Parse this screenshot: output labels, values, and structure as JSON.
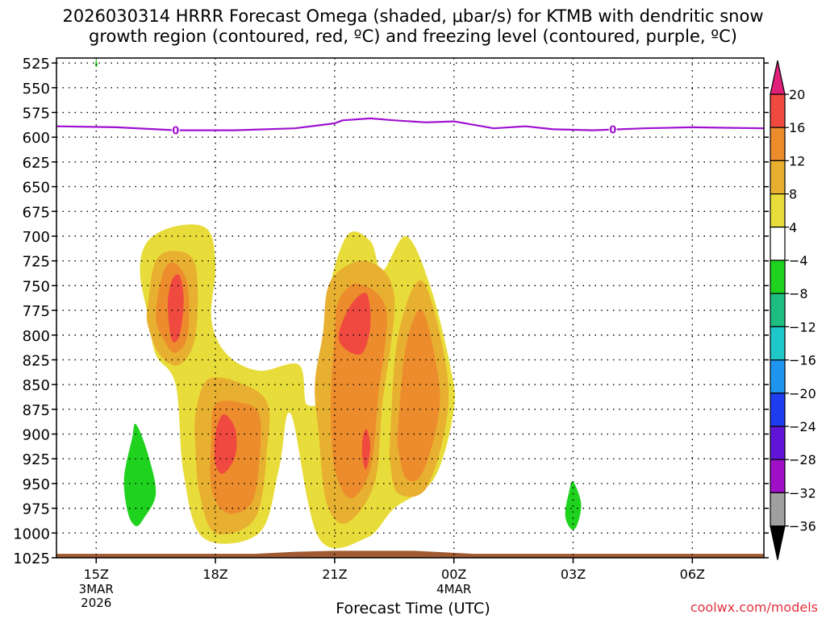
{
  "title_line1": "2026030314 HRRR Forecast Omega (shaded, μbar/s) for KTMB with dendritic snow",
  "title_line2": "growth region (contoured, red, ºC) and freezing level (contoured, purple, ºC)",
  "xlabel": "Forecast Time (UTC)",
  "credit": "coolwx.com/models",
  "colors": {
    "c4_8": "#e8dc3a",
    "c8_12": "#e8b030",
    "c12_16": "#ec8c2c",
    "c16_20": "#f04a40",
    "c20p": "#e0207a",
    "green": "#1ed21e",
    "freeze": "#a010d0",
    "ground": "#a05a32"
  },
  "chart_data": {
    "type": "heatmap",
    "title": "2026030314 HRRR Forecast Omega (shaded, μbar/s) for KTMB with dendritic snow growth region (contoured, red, ºC) and freezing level (contoured, purple, ºC)",
    "xlabel": "Forecast Time (UTC)",
    "ylabel": "",
    "x_ticks": [
      {
        "label": "15Z",
        "sub": [
          "3MAR",
          "2026"
        ]
      },
      {
        "label": "18Z",
        "sub": []
      },
      {
        "label": "21Z",
        "sub": []
      },
      {
        "label": "00Z",
        "sub": [
          "4MAR"
        ]
      },
      {
        "label": "03Z",
        "sub": []
      },
      {
        "label": "06Z",
        "sub": []
      }
    ],
    "x_hours": [
      0,
      3,
      6,
      9,
      12,
      15
    ],
    "x_range_hours": [
      -1.0,
      16.8
    ],
    "y_levels": [
      525,
      550,
      575,
      600,
      625,
      650,
      675,
      700,
      725,
      750,
      775,
      800,
      825,
      850,
      875,
      900,
      925,
      950,
      975,
      1000,
      1025
    ],
    "y_range_hpa": [
      520,
      1025
    ],
    "colorbar": {
      "labels": [
        "20",
        "16",
        "12",
        "8",
        "4",
        "−4",
        "−8",
        "−12",
        "−16",
        "−20",
        "−24",
        "−28",
        "−32",
        "−36"
      ],
      "colors": [
        "#f04a40",
        "#ec8c2c",
        "#e8b030",
        "#e8dc3a",
        "#ffffff",
        "#1ed21e",
        "#1ebe82",
        "#1ec8c8",
        "#1e96f0",
        "#1e3cf0",
        "#6014d8",
        "#a010c8",
        "#a0a0a0"
      ]
    },
    "freezing_level": {
      "label": "0",
      "points_hour_hpa": [
        [
          -1.0,
          589
        ],
        [
          0.5,
          590
        ],
        [
          2.0,
          593
        ],
        [
          3.5,
          593
        ],
        [
          5.0,
          591
        ],
        [
          6.0,
          586
        ],
        [
          6.2,
          583
        ],
        [
          6.9,
          581
        ],
        [
          7.5,
          583
        ],
        [
          8.3,
          585
        ],
        [
          9.0,
          584
        ],
        [
          10.0,
          591
        ],
        [
          10.8,
          589
        ],
        [
          11.5,
          592
        ],
        [
          12.5,
          593
        ],
        [
          13.8,
          591
        ],
        [
          15.0,
          590
        ],
        [
          16.8,
          591
        ]
      ],
      "label_hours": [
        2.0,
        13.0
      ]
    },
    "omega_regions": [
      {
        "level": "4-8",
        "points_hour_hpa": [
          [
            1.1,
            735
          ],
          [
            1.3,
            705
          ],
          [
            2.0,
            690
          ],
          [
            2.8,
            693
          ],
          [
            3.0,
            730
          ],
          [
            2.9,
            785
          ],
          [
            3.3,
            820
          ],
          [
            4.1,
            836
          ],
          [
            5.1,
            830
          ],
          [
            5.3,
            870
          ],
          [
            5.8,
            855
          ],
          [
            5.8,
            770
          ],
          [
            6.3,
            700
          ],
          [
            6.9,
            705
          ],
          [
            7.2,
            735
          ],
          [
            7.8,
            700
          ],
          [
            8.4,
            750
          ],
          [
            8.9,
            830
          ],
          [
            9.0,
            875
          ],
          [
            8.5,
            945
          ],
          [
            7.5,
            975
          ],
          [
            6.8,
            1005
          ],
          [
            5.6,
            1005
          ],
          [
            4.9,
            880
          ],
          [
            4.6,
            935
          ],
          [
            4.1,
            1000
          ],
          [
            2.7,
            1005
          ],
          [
            2.2,
            940
          ],
          [
            2.0,
            850
          ],
          [
            1.5,
            820
          ],
          [
            1.3,
            780
          ]
        ]
      },
      {
        "level": "8-12",
        "points_hour_hpa": [
          [
            1.3,
            770
          ],
          [
            1.5,
            725
          ],
          [
            2.0,
            715
          ],
          [
            2.5,
            730
          ],
          [
            2.5,
            800
          ],
          [
            2.1,
            830
          ],
          [
            1.6,
            820
          ],
          [
            1.3,
            790
          ]
        ]
      },
      {
        "level": "8-12",
        "points_hour_hpa": [
          [
            2.5,
            880
          ],
          [
            2.8,
            845
          ],
          [
            3.6,
            848
          ],
          [
            4.3,
            868
          ],
          [
            4.3,
            915
          ],
          [
            4.0,
            985
          ],
          [
            3.0,
            1000
          ],
          [
            2.6,
            960
          ],
          [
            2.5,
            915
          ]
        ]
      },
      {
        "level": "8-12",
        "points_hour_hpa": [
          [
            5.7,
            800
          ],
          [
            5.9,
            745
          ],
          [
            6.8,
            725
          ],
          [
            7.5,
            760
          ],
          [
            7.2,
            870
          ],
          [
            7.0,
            950
          ],
          [
            6.3,
            990
          ],
          [
            5.8,
            970
          ],
          [
            5.6,
            900
          ],
          [
            5.5,
            850
          ]
        ]
      },
      {
        "level": "8-12",
        "points_hour_hpa": [
          [
            7.4,
            900
          ],
          [
            7.6,
            800
          ],
          [
            8.2,
            745
          ],
          [
            8.8,
            830
          ],
          [
            8.8,
            890
          ],
          [
            8.3,
            955
          ],
          [
            7.6,
            960
          ],
          [
            7.4,
            930
          ]
        ]
      },
      {
        "level": "12-16",
        "points_hour_hpa": [
          [
            1.5,
            780
          ],
          [
            1.7,
            735
          ],
          [
            2.0,
            728
          ],
          [
            2.3,
            750
          ],
          [
            2.3,
            800
          ],
          [
            2.0,
            818
          ],
          [
            1.7,
            805
          ]
        ]
      },
      {
        "level": "12-16",
        "points_hour_hpa": [
          [
            2.9,
            900
          ],
          [
            3.0,
            870
          ],
          [
            3.6,
            868
          ],
          [
            4.1,
            880
          ],
          [
            4.1,
            930
          ],
          [
            3.9,
            970
          ],
          [
            3.3,
            980
          ],
          [
            2.9,
            955
          ]
        ]
      },
      {
        "level": "12-16",
        "points_hour_hpa": [
          [
            6.0,
            800
          ],
          [
            6.1,
            765
          ],
          [
            6.6,
            748
          ],
          [
            7.3,
            775
          ],
          [
            7.1,
            860
          ],
          [
            6.9,
            935
          ],
          [
            6.4,
            965
          ],
          [
            6.0,
            935
          ],
          [
            5.9,
            870
          ]
        ]
      },
      {
        "level": "12-16",
        "points_hour_hpa": [
          [
            7.6,
            890
          ],
          [
            7.8,
            810
          ],
          [
            8.2,
            775
          ],
          [
            8.6,
            840
          ],
          [
            8.6,
            885
          ],
          [
            8.2,
            940
          ],
          [
            7.8,
            945
          ],
          [
            7.6,
            915
          ]
        ]
      },
      {
        "level": "16-20",
        "points_hour_hpa": [
          [
            1.8,
            770
          ],
          [
            1.9,
            745
          ],
          [
            2.1,
            740
          ],
          [
            2.2,
            765
          ],
          [
            2.1,
            800
          ],
          [
            1.9,
            805
          ]
        ]
      },
      {
        "level": "16-20",
        "points_hour_hpa": [
          [
            3.0,
            900
          ],
          [
            3.2,
            880
          ],
          [
            3.5,
            895
          ],
          [
            3.5,
            922
          ],
          [
            3.2,
            940
          ],
          [
            3.0,
            930
          ]
        ]
      },
      {
        "level": "16-20",
        "points_hour_hpa": [
          [
            6.1,
            800
          ],
          [
            6.4,
            770
          ],
          [
            6.8,
            758
          ],
          [
            6.9,
            790
          ],
          [
            6.7,
            818
          ],
          [
            6.3,
            815
          ]
        ]
      },
      {
        "level": "16-20",
        "points_hour_hpa": [
          [
            6.7,
            905
          ],
          [
            6.8,
            895
          ],
          [
            6.9,
            912
          ],
          [
            6.8,
            935
          ],
          [
            6.7,
            925
          ]
        ]
      },
      {
        "level": "-4--8",
        "points_hour_hpa": [
          [
            0.7,
            945
          ],
          [
            0.9,
            905
          ],
          [
            1.0,
            890
          ],
          [
            1.3,
            920
          ],
          [
            1.5,
            960
          ],
          [
            1.2,
            985
          ],
          [
            1.0,
            993
          ],
          [
            0.8,
            980
          ]
        ]
      },
      {
        "level": "-4--8",
        "points_hour_hpa": [
          [
            11.8,
            982
          ],
          [
            11.9,
            958
          ],
          [
            12.0,
            948
          ],
          [
            12.2,
            970
          ],
          [
            12.1,
            992
          ],
          [
            11.95,
            996
          ]
        ]
      },
      {
        "level": "-4--8",
        "points_hour_hpa": [
          [
            -0.02,
            528
          ],
          [
            0.0,
            521
          ],
          [
            0.03,
            528
          ]
        ]
      }
    ],
    "ground_profile_hour_hpa": [
      [
        -1.0,
        1021
      ],
      [
        4.0,
        1021
      ],
      [
        5.0,
        1019
      ],
      [
        6.0,
        1018
      ],
      [
        8.0,
        1018
      ],
      [
        9.0,
        1020
      ],
      [
        9.5,
        1021
      ],
      [
        16.8,
        1021
      ]
    ]
  }
}
